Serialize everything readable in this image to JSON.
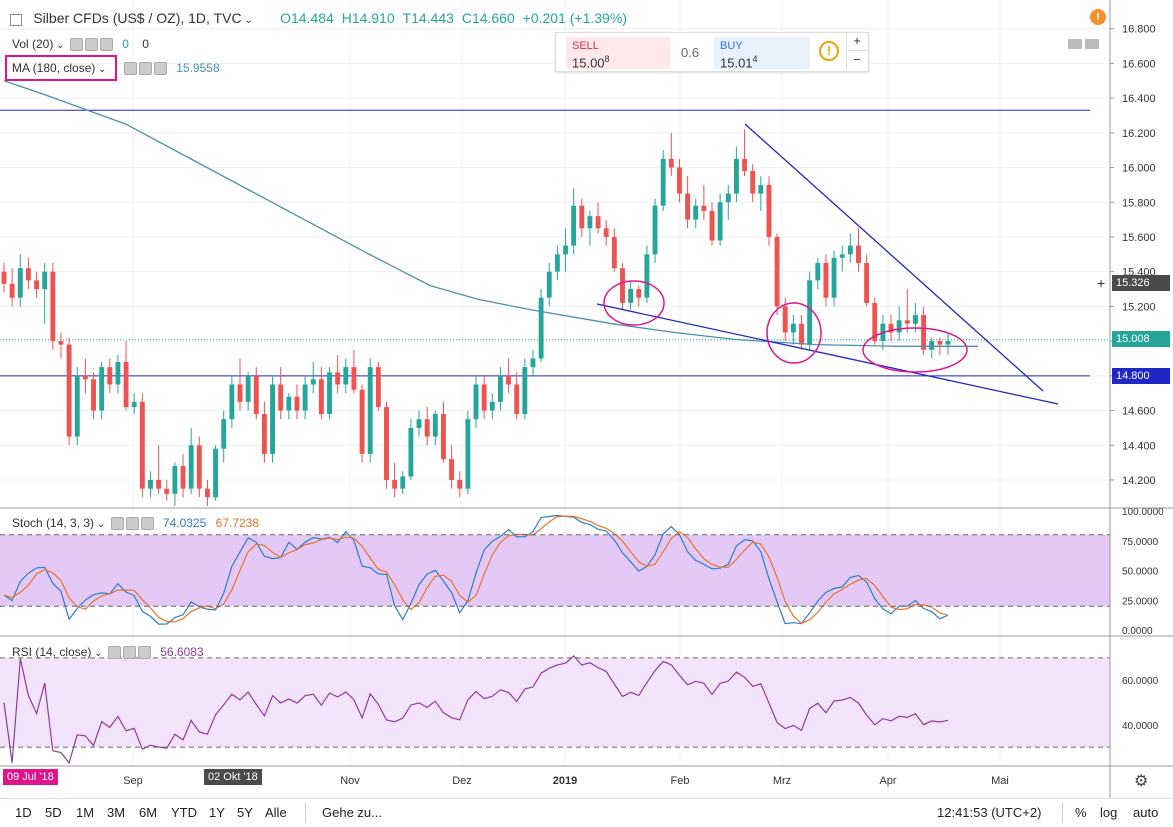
{
  "header": {
    "title": "Silber CFDs (US$ / OZ), 1D, TVC",
    "ohlc": {
      "o_label": "O",
      "o": "14.484",
      "h_label": "H",
      "h": "14.910",
      "l_label": "T",
      "l": "14.443",
      "c_label": "C",
      "c": "14.660",
      "chg": "+0.201 (+1.39%)"
    }
  },
  "indicators": {
    "vol": {
      "label": "Vol (20)",
      "v1": "0",
      "v2": "0"
    },
    "ma": {
      "label": "MA (180, close)",
      "value": "15.9558"
    },
    "stoch": {
      "label": "Stoch (14, 3, 3)",
      "k": "74.0325",
      "d": "67.7238"
    },
    "rsi": {
      "label": "RSI (14, close)",
      "value": "56.6083"
    }
  },
  "trade_panel": {
    "sell_label": "SELL",
    "sell_main": "15.00",
    "sell_sup": "8",
    "spread": "0.6",
    "buy_label": "BUY",
    "buy_main": "15.01",
    "buy_sup": "4",
    "plus": "+",
    "minus": "−",
    "info": "!"
  },
  "price_tags": {
    "cross": "15.326",
    "last": "15.008",
    "hline": "14.800"
  },
  "date_tags": {
    "start": "09 Jul '18",
    "cross": "02 Okt '18"
  },
  "bottom": {
    "ranges": [
      "1D",
      "5D",
      "1M",
      "3M",
      "6M",
      "YTD",
      "1Y",
      "5Y",
      "Alle"
    ],
    "goto": "Gehe zu...",
    "time": "12:41:53 (UTC+2)",
    "pct": "%",
    "log": "log",
    "auto": "auto"
  },
  "colors": {
    "up": "#26a69a",
    "down": "#ef5350",
    "ma": "#4a8fb5",
    "trend": "#2026c4",
    "circle": "#e0148d",
    "stoch_k": "#2e7dc7",
    "stoch_d": "#e8742c",
    "rsi": "#8e3c9e",
    "stoch_band": "#e4c9f7",
    "rsi_band": "#f3e4fb"
  },
  "chart_data": {
    "type": "candlestick",
    "x_ticks": [
      "Sep",
      "Nov",
      "Dez",
      "2019",
      "Feb",
      "Mrz",
      "Apr",
      "Mai"
    ],
    "price_axis": {
      "ticks": [
        "16.800",
        "16.600",
        "16.400",
        "16.200",
        "16.000",
        "15.800",
        "15.600",
        "15.400",
        "15.200",
        "15.000",
        "14.800",
        "14.600",
        "14.400",
        "14.200"
      ],
      "range": [
        14.05,
        16.85
      ]
    },
    "stoch_axis": {
      "ticks": [
        "100.0000",
        "75.0000",
        "50.0000",
        "25.0000",
        "0.0000"
      ],
      "range": [
        0,
        100
      ],
      "band": [
        20,
        80
      ]
    },
    "rsi_axis": {
      "ticks": [
        "60.0000",
        "40.0000"
      ],
      "range": [
        22,
        78
      ],
      "band": [
        30,
        70
      ]
    },
    "horizontal_lines": [
      16.33,
      14.8
    ],
    "candles": [
      [
        15.4,
        15.45,
        15.28,
        15.33
      ],
      [
        15.33,
        15.42,
        15.2,
        15.25
      ],
      [
        15.25,
        15.5,
        15.2,
        15.42
      ],
      [
        15.42,
        15.48,
        15.3,
        15.35
      ],
      [
        15.35,
        15.4,
        15.25,
        15.3
      ],
      [
        15.3,
        15.45,
        15.1,
        15.4
      ],
      [
        15.4,
        15.45,
        14.95,
        15.0
      ],
      [
        15.0,
        15.05,
        14.9,
        14.98
      ],
      [
        14.98,
        15.02,
        14.4,
        14.45
      ],
      [
        14.45,
        14.85,
        14.4,
        14.8
      ],
      [
        14.8,
        14.9,
        14.7,
        14.78
      ],
      [
        14.78,
        14.82,
        14.55,
        14.6
      ],
      [
        14.6,
        14.88,
        14.55,
        14.85
      ],
      [
        14.85,
        14.9,
        14.7,
        14.75
      ],
      [
        14.75,
        14.92,
        14.7,
        14.88
      ],
      [
        14.88,
        15.0,
        14.6,
        14.62
      ],
      [
        14.62,
        14.7,
        14.58,
        14.65
      ],
      [
        14.65,
        14.7,
        14.1,
        14.15
      ],
      [
        14.15,
        14.25,
        14.1,
        14.2
      ],
      [
        14.2,
        14.4,
        14.12,
        14.15
      ],
      [
        14.15,
        14.2,
        14.08,
        14.12
      ],
      [
        14.12,
        14.3,
        14.05,
        14.28
      ],
      [
        14.28,
        14.35,
        14.1,
        14.15
      ],
      [
        14.15,
        14.5,
        14.12,
        14.4
      ],
      [
        14.4,
        14.45,
        14.1,
        14.15
      ],
      [
        14.15,
        14.2,
        14.05,
        14.1
      ],
      [
        14.1,
        14.4,
        14.08,
        14.38
      ],
      [
        14.38,
        14.6,
        14.3,
        14.55
      ],
      [
        14.55,
        14.8,
        14.5,
        14.75
      ],
      [
        14.75,
        14.9,
        14.6,
        14.65
      ],
      [
        14.65,
        14.82,
        14.6,
        14.8
      ],
      [
        14.8,
        14.85,
        14.55,
        14.58
      ],
      [
        14.58,
        14.65,
        14.3,
        14.35
      ],
      [
        14.35,
        14.8,
        14.3,
        14.75
      ],
      [
        14.75,
        14.85,
        14.55,
        14.6
      ],
      [
        14.6,
        14.7,
        14.55,
        14.68
      ],
      [
        14.68,
        14.75,
        14.55,
        14.6
      ],
      [
        14.6,
        14.8,
        14.55,
        14.75
      ],
      [
        14.75,
        14.88,
        14.7,
        14.78
      ],
      [
        14.78,
        14.85,
        14.55,
        14.58
      ],
      [
        14.58,
        14.85,
        14.55,
        14.82
      ],
      [
        14.82,
        14.92,
        14.7,
        14.75
      ],
      [
        14.75,
        14.9,
        14.7,
        14.85
      ],
      [
        14.85,
        14.95,
        14.7,
        14.72
      ],
      [
        14.72,
        14.75,
        14.3,
        14.35
      ],
      [
        14.35,
        14.9,
        14.3,
        14.85
      ],
      [
        14.85,
        14.88,
        14.6,
        14.62
      ],
      [
        14.62,
        14.65,
        14.15,
        14.2
      ],
      [
        14.2,
        14.3,
        14.1,
        14.15
      ],
      [
        14.15,
        14.25,
        14.12,
        14.22
      ],
      [
        14.22,
        14.55,
        14.2,
        14.5
      ],
      [
        14.5,
        14.6,
        14.45,
        14.55
      ],
      [
        14.55,
        14.62,
        14.4,
        14.45
      ],
      [
        14.45,
        14.6,
        14.4,
        14.58
      ],
      [
        14.58,
        14.65,
        14.3,
        14.32
      ],
      [
        14.32,
        14.4,
        14.15,
        14.2
      ],
      [
        14.2,
        14.25,
        14.1,
        14.15
      ],
      [
        14.15,
        14.6,
        14.12,
        14.55
      ],
      [
        14.55,
        14.8,
        14.5,
        14.75
      ],
      [
        14.75,
        14.8,
        14.55,
        14.6
      ],
      [
        14.6,
        14.7,
        14.55,
        14.65
      ],
      [
        14.65,
        14.85,
        14.6,
        14.8
      ],
      [
        14.8,
        14.9,
        14.7,
        14.75
      ],
      [
        14.75,
        14.82,
        14.55,
        14.58
      ],
      [
        14.58,
        14.9,
        14.55,
        14.85
      ],
      [
        14.85,
        14.95,
        14.8,
        14.9
      ],
      [
        14.9,
        15.3,
        14.88,
        15.25
      ],
      [
        15.25,
        15.45,
        15.2,
        15.4
      ],
      [
        15.4,
        15.55,
        15.35,
        15.5
      ],
      [
        15.5,
        15.65,
        15.4,
        15.55
      ],
      [
        15.55,
        15.88,
        15.5,
        15.78
      ],
      [
        15.78,
        15.82,
        15.6,
        15.65
      ],
      [
        15.65,
        15.75,
        15.55,
        15.72
      ],
      [
        15.72,
        15.8,
        15.62,
        15.65
      ],
      [
        15.65,
        15.7,
        15.55,
        15.6
      ],
      [
        15.6,
        15.65,
        15.4,
        15.42
      ],
      [
        15.42,
        15.45,
        15.18,
        15.22
      ],
      [
        15.22,
        15.35,
        15.18,
        15.3
      ],
      [
        15.3,
        15.32,
        15.2,
        15.25
      ],
      [
        15.25,
        15.55,
        15.22,
        15.5
      ],
      [
        15.5,
        15.82,
        15.45,
        15.78
      ],
      [
        15.78,
        16.1,
        15.75,
        16.05
      ],
      [
        16.05,
        16.2,
        15.95,
        16.0
      ],
      [
        16.0,
        16.05,
        15.8,
        15.85
      ],
      [
        15.85,
        15.95,
        15.65,
        15.7
      ],
      [
        15.7,
        15.82,
        15.65,
        15.78
      ],
      [
        15.78,
        15.9,
        15.7,
        15.75
      ],
      [
        15.75,
        15.8,
        15.55,
        15.58
      ],
      [
        15.58,
        15.85,
        15.55,
        15.8
      ],
      [
        15.8,
        15.9,
        15.7,
        15.85
      ],
      [
        15.85,
        16.12,
        15.8,
        16.05
      ],
      [
        16.05,
        16.22,
        15.95,
        15.98
      ],
      [
        15.98,
        16.02,
        15.8,
        15.85
      ],
      [
        15.85,
        15.95,
        15.75,
        15.9
      ],
      [
        15.9,
        15.95,
        15.55,
        15.6
      ],
      [
        15.6,
        15.62,
        15.15,
        15.2
      ],
      [
        15.2,
        15.25,
        15.0,
        15.05
      ],
      [
        15.05,
        15.15,
        14.98,
        15.1
      ],
      [
        15.1,
        15.15,
        14.95,
        14.98
      ],
      [
        14.98,
        15.4,
        14.95,
        15.35
      ],
      [
        15.35,
        15.48,
        15.3,
        15.45
      ],
      [
        15.45,
        15.5,
        15.2,
        15.25
      ],
      [
        15.25,
        15.52,
        15.2,
        15.48
      ],
      [
        15.48,
        15.55,
        15.4,
        15.5
      ],
      [
        15.5,
        15.62,
        15.45,
        15.55
      ],
      [
        15.55,
        15.65,
        15.4,
        15.45
      ],
      [
        15.45,
        15.5,
        15.2,
        15.22
      ],
      [
        15.22,
        15.25,
        14.98,
        15.0
      ],
      [
        15.0,
        15.15,
        14.95,
        15.1
      ],
      [
        15.1,
        15.15,
        15.0,
        15.05
      ],
      [
        15.05,
        15.2,
        15.0,
        15.12
      ],
      [
        15.12,
        15.3,
        15.05,
        15.1
      ],
      [
        15.1,
        15.22,
        15.05,
        15.15
      ],
      [
        15.15,
        15.2,
        14.92,
        14.95
      ],
      [
        14.95,
        15.02,
        14.9,
        15.0
      ],
      [
        15.0,
        15.02,
        14.92,
        14.98
      ],
      [
        14.98,
        15.05,
        14.92,
        15.0
      ]
    ],
    "ma_line": [
      [
        0,
        16.5
      ],
      [
        10,
        16.42
      ],
      [
        30,
        16.25
      ],
      [
        50,
        16.0
      ],
      [
        70,
        15.75
      ],
      [
        90,
        15.5
      ],
      [
        105,
        15.32
      ],
      [
        117,
        15.24
      ],
      [
        130,
        15.18
      ],
      [
        150,
        15.1
      ],
      [
        165,
        15.05
      ],
      [
        180,
        15.01
      ],
      [
        200,
        14.98
      ],
      [
        220,
        14.97
      ],
      [
        240,
        14.97
      ]
    ],
    "trend_lines": [
      [
        [
          597,
          304
        ],
        [
          1058,
          404
        ]
      ],
      [
        [
          745,
          124
        ],
        [
          1043,
          391
        ]
      ]
    ],
    "circles": [
      [
        634,
        303,
        30,
        22
      ],
      [
        794,
        333,
        27,
        30
      ],
      [
        915,
        350,
        52,
        22
      ]
    ]
  }
}
